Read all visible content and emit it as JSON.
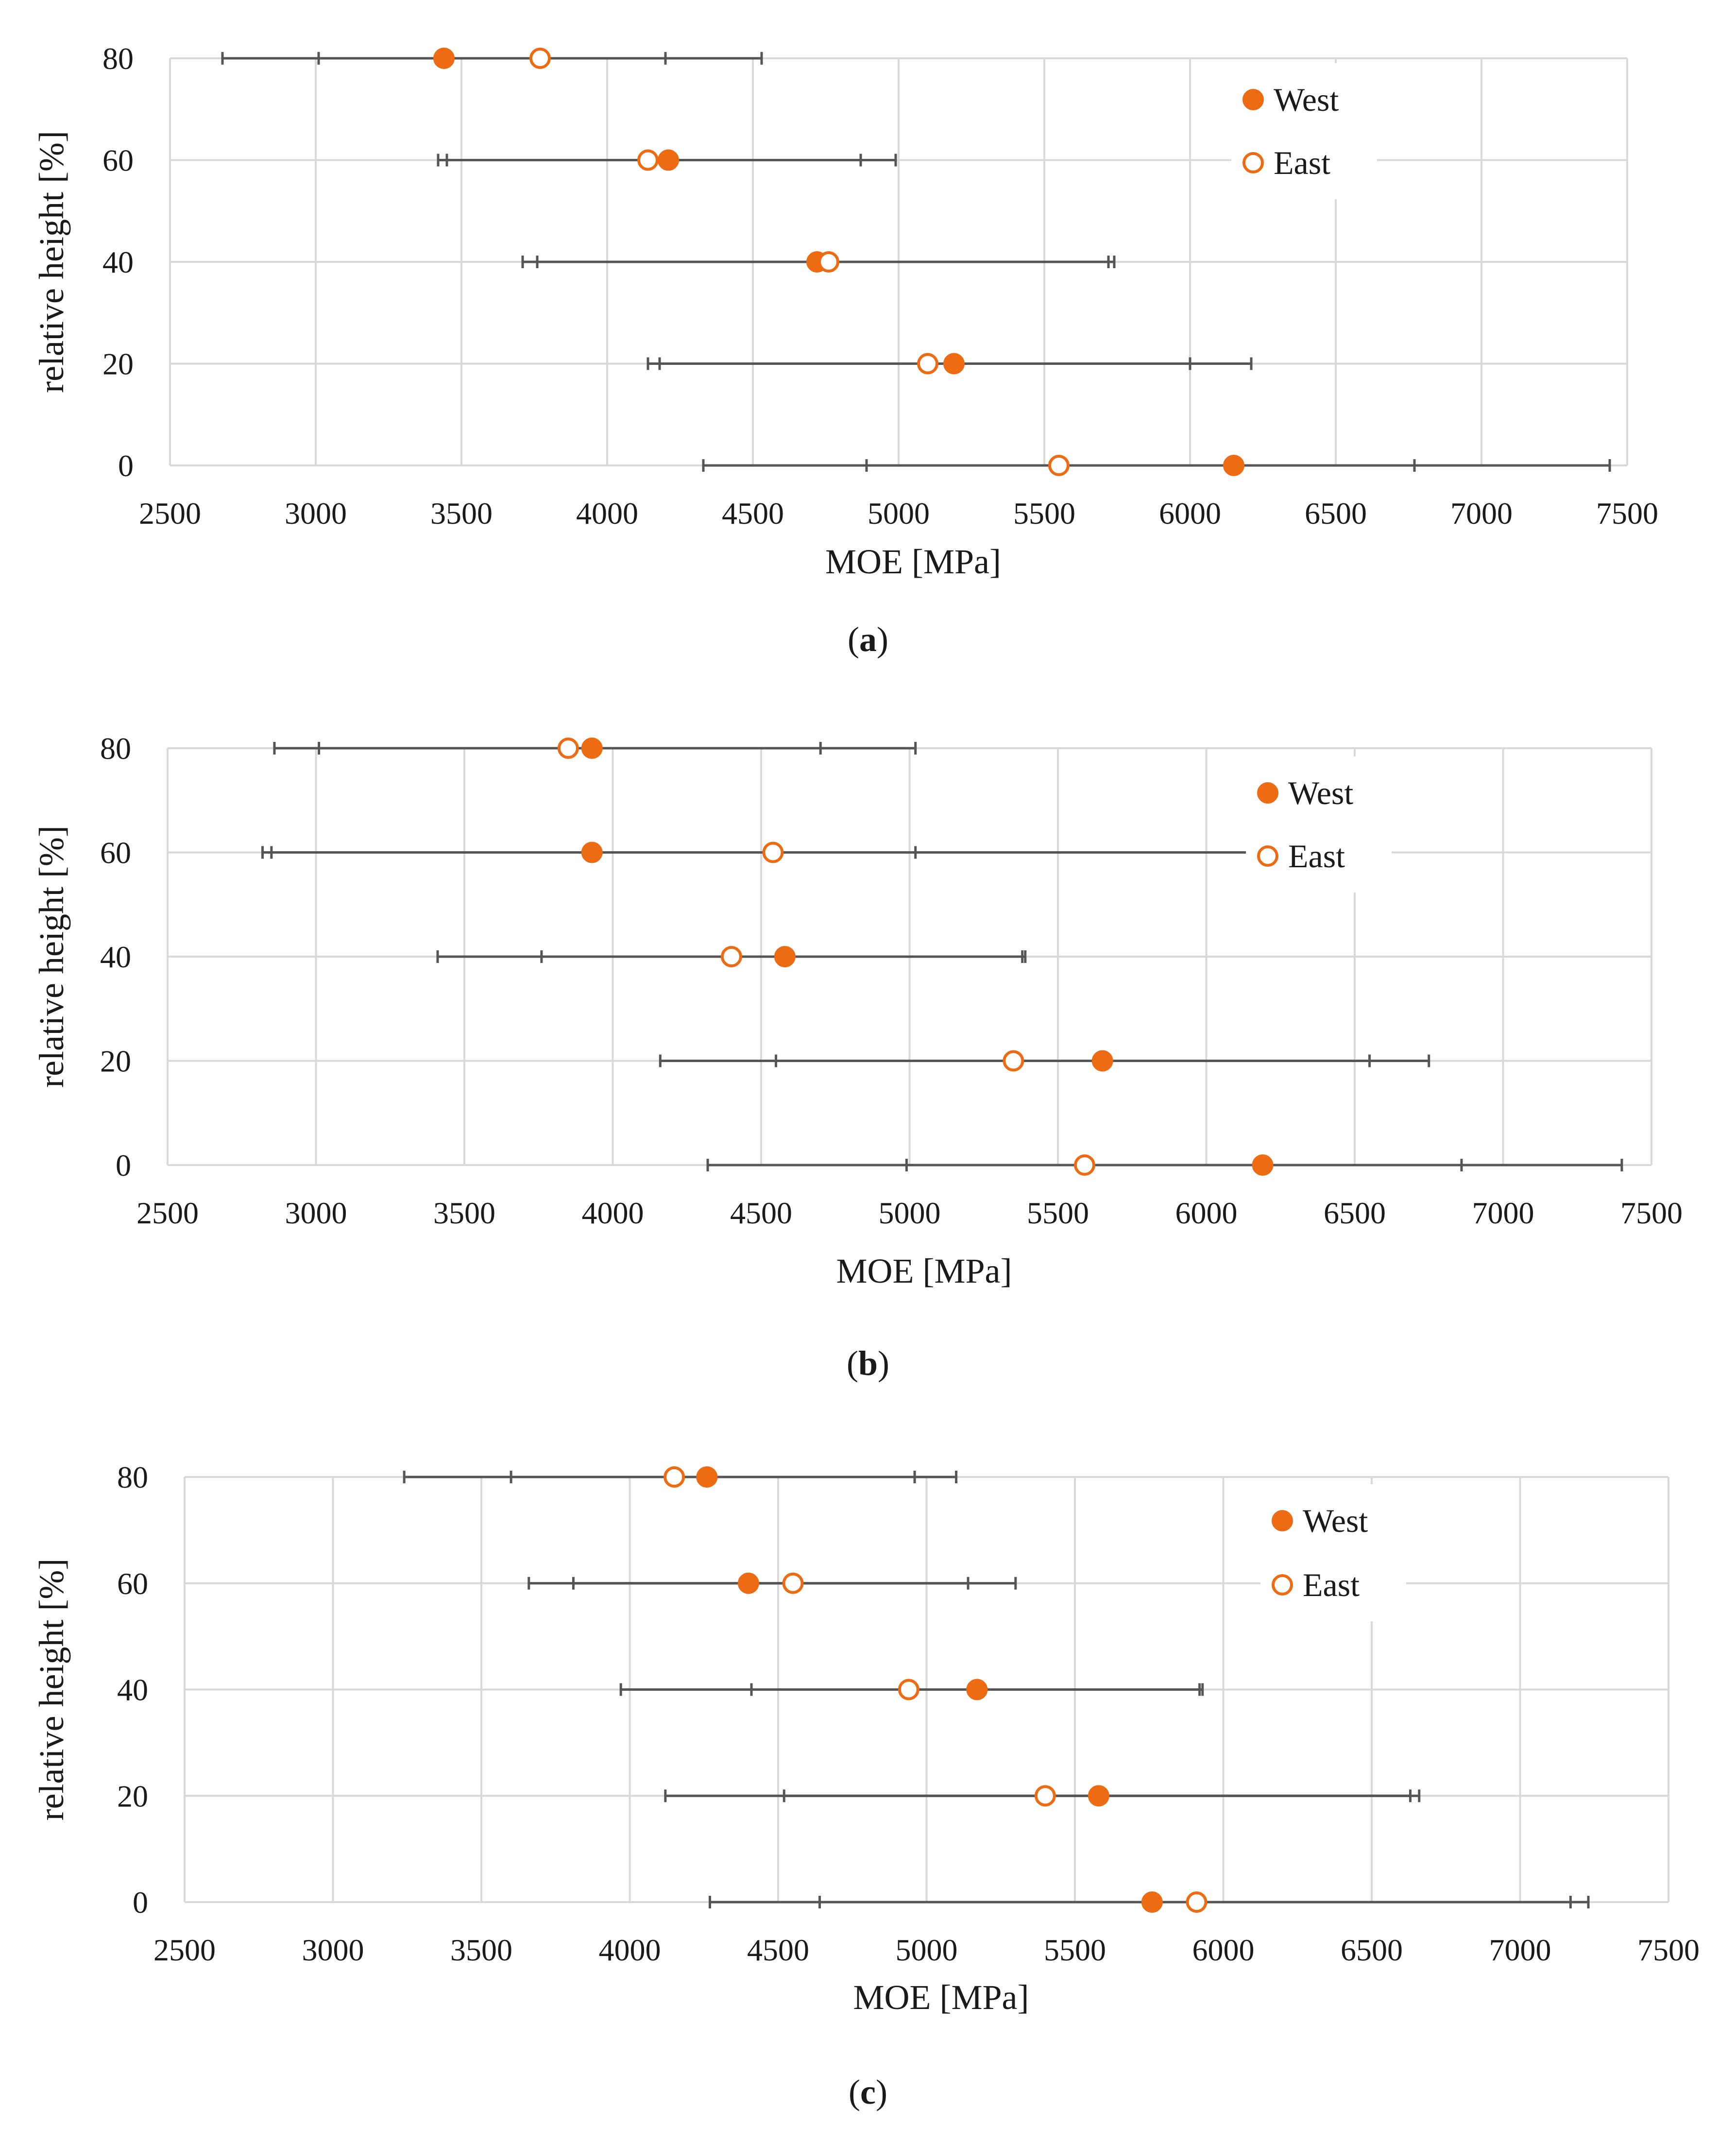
{
  "colors": {
    "marker": "#ED6C13",
    "grid": "#D9D9D9",
    "errorbar": "#555555"
  },
  "chart_data": [
    {
      "type": "scatter",
      "caption": "a",
      "title": "",
      "xlabel": "MOE [MPa]",
      "ylabel": "relative height [%]",
      "xlim": [
        2500,
        7500
      ],
      "ylim": [
        0,
        80
      ],
      "xticks": [
        "2500",
        "3000",
        "3500",
        "4000",
        "4500",
        "5000",
        "5500",
        "6000",
        "6500",
        "7000",
        "7500"
      ],
      "yticks": [
        "0",
        "20",
        "40",
        "60",
        "80"
      ],
      "legend": {
        "position": "top-right",
        "entries": [
          "West",
          "East"
        ]
      },
      "series": [
        {
          "name": "West",
          "marker": "filled-circle",
          "points": [
            {
              "y": 80,
              "x": 3440,
              "err": [
                2680,
                4200
              ]
            },
            {
              "y": 60,
              "x": 4210,
              "err": [
                3450,
                4870
              ]
            },
            {
              "y": 40,
              "x": 4720,
              "err": [
                3710,
                5720
              ]
            },
            {
              "y": 20,
              "x": 5190,
              "err": [
                4180,
                6210
              ]
            },
            {
              "y": 0,
              "x": 6150,
              "err": [
                4890,
                7440
              ]
            }
          ]
        },
        {
          "name": "East",
          "marker": "open-circle",
          "points": [
            {
              "y": 80,
              "x": 3770,
              "err": [
                3010,
                4530
              ]
            },
            {
              "y": 60,
              "x": 4140,
              "err": [
                3420,
                4990
              ]
            },
            {
              "y": 40,
              "x": 4760,
              "err": [
                3760,
                5740
              ]
            },
            {
              "y": 20,
              "x": 5100,
              "err": [
                4140,
                6000
              ]
            },
            {
              "y": 0,
              "x": 5550,
              "err": [
                4330,
                6770
              ]
            }
          ]
        }
      ]
    },
    {
      "type": "scatter",
      "caption": "b",
      "title": "",
      "xlabel": "MOE [MPa]",
      "ylabel": "relative height [%]",
      "xlim": [
        2500,
        7500
      ],
      "ylim": [
        0,
        80
      ],
      "xticks": [
        "2500",
        "3000",
        "3500",
        "4000",
        "4500",
        "5000",
        "5500",
        "6000",
        "6500",
        "7000",
        "7500"
      ],
      "yticks": [
        "0",
        "20",
        "40",
        "60",
        "80"
      ],
      "legend": {
        "position": "top-right",
        "entries": [
          "West",
          "East"
        ]
      },
      "series": [
        {
          "name": "West",
          "marker": "filled-circle",
          "points": [
            {
              "y": 80,
              "x": 3930,
              "err": [
                2860,
                5020
              ]
            },
            {
              "y": 60,
              "x": 3930,
              "err": [
                2850,
                5020
              ]
            },
            {
              "y": 40,
              "x": 4580,
              "err": [
                3760,
                5390
              ]
            },
            {
              "y": 20,
              "x": 5650,
              "err": [
                4550,
                6750
              ]
            },
            {
              "y": 0,
              "x": 6190,
              "err": [
                4990,
                7400
              ]
            }
          ]
        },
        {
          "name": "East",
          "marker": "open-circle",
          "points": [
            {
              "y": 80,
              "x": 3850,
              "err": [
                3010,
                4700
              ]
            },
            {
              "y": 60,
              "x": 4540,
              "err": [
                2820,
                6260
              ]
            },
            {
              "y": 40,
              "x": 4400,
              "err": [
                3410,
                5380
              ]
            },
            {
              "y": 20,
              "x": 5350,
              "err": [
                4160,
                6550
              ]
            },
            {
              "y": 0,
              "x": 5590,
              "err": [
                4320,
                6860
              ]
            }
          ]
        }
      ]
    },
    {
      "type": "scatter",
      "caption": "c",
      "title": "",
      "xlabel": "MOE [MPa]",
      "ylabel": "relative height [%]",
      "xlim": [
        2500,
        7500
      ],
      "ylim": [
        0,
        80
      ],
      "xticks": [
        "2500",
        "3000",
        "3500",
        "4000",
        "4500",
        "5000",
        "5500",
        "6000",
        "6500",
        "7000",
        "7500"
      ],
      "yticks": [
        "0",
        "20",
        "40",
        "60",
        "80"
      ],
      "legend": {
        "position": "top-right",
        "entries": [
          "West",
          "East"
        ]
      },
      "series": [
        {
          "name": "West",
          "marker": "filled-circle",
          "points": [
            {
              "y": 80,
              "x": 4260,
              "err": [
                3600,
                5100
              ]
            },
            {
              "y": 60,
              "x": 4400,
              "err": [
                3810,
                5140
              ]
            },
            {
              "y": 40,
              "x": 5170,
              "err": [
                4410,
                5920
              ]
            },
            {
              "y": 20,
              "x": 5580,
              "err": [
                4520,
                6630
              ]
            },
            {
              "y": 0,
              "x": 5760,
              "err": [
                4270,
                7170
              ]
            }
          ]
        },
        {
          "name": "East",
          "marker": "open-circle",
          "points": [
            {
              "y": 80,
              "x": 4150,
              "err": [
                3240,
                4960
              ]
            },
            {
              "y": 60,
              "x": 4550,
              "err": [
                3660,
                5300
              ]
            },
            {
              "y": 40,
              "x": 4940,
              "err": [
                3970,
                5930
              ]
            },
            {
              "y": 20,
              "x": 5400,
              "err": [
                4120,
                6660
              ]
            },
            {
              "y": 0,
              "x": 5910,
              "err": [
                4640,
                7230
              ]
            }
          ]
        }
      ]
    }
  ]
}
